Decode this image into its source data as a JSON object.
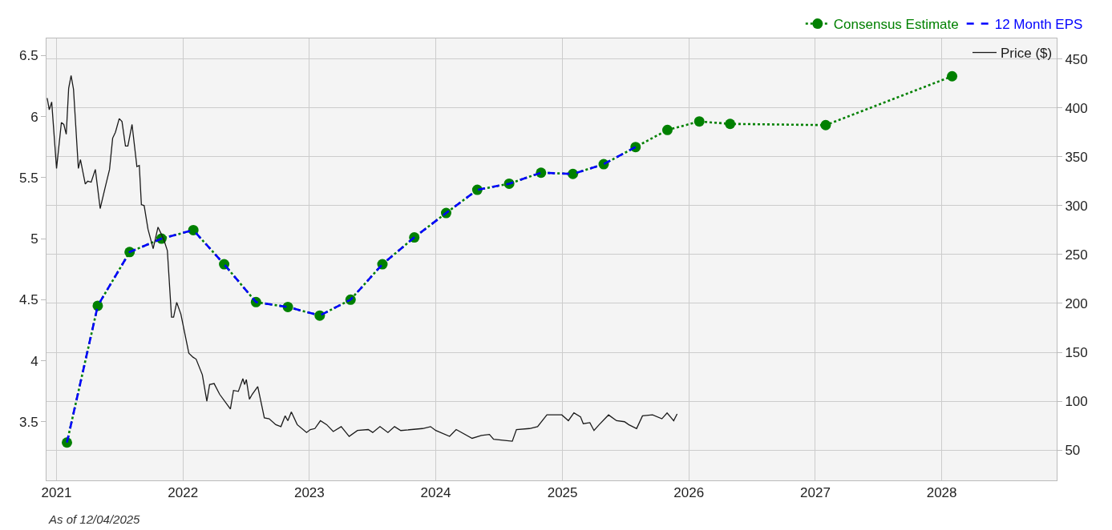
{
  "chart_data": {
    "type": "line",
    "xlim": [
      "2020-12-03",
      "2028-11-28"
    ],
    "xticks": [
      "2021",
      "2022",
      "2023",
      "2024",
      "2025",
      "2026",
      "2027",
      "2028"
    ],
    "ylim": [
      3.02,
      6.64
    ],
    "yticks": [
      3.5,
      4,
      4.5,
      5,
      5.5,
      6,
      6.5
    ],
    "y2lim": [
      19,
      471
    ],
    "y2ticks": [
      50,
      100,
      150,
      200,
      250,
      300,
      350,
      400,
      450
    ],
    "grid": true,
    "legend": "top right",
    "annotations": [
      "As of 12/04/2025"
    ],
    "series": [
      {
        "name": "Price ($)",
        "color": "#1a1a1a",
        "axis": "y2",
        "line_style": "solid",
        "marker": "none",
        "x": [
          "2020-12-05",
          "2020-12-11",
          "2020-12-18",
          "2021-01-01",
          "2021-01-15",
          "2021-01-22",
          "2021-01-29",
          "2021-02-05",
          "2021-02-12",
          "2021-02-19",
          "2021-03-05",
          "2021-03-11",
          "2021-03-25",
          "2021-04-01",
          "2021-04-11",
          "2021-04-23",
          "2021-05-07",
          "2021-05-21",
          "2021-06-03",
          "2021-06-12",
          "2021-06-20",
          "2021-07-01",
          "2021-07-09",
          "2021-07-19",
          "2021-07-26",
          "2021-08-07",
          "2021-08-21",
          "2021-08-28",
          "2021-09-03",
          "2021-09-11",
          "2021-09-22",
          "2021-10-07",
          "2021-10-21",
          "2021-11-06",
          "2021-11-17",
          "2021-11-29",
          "2021-12-05",
          "2021-12-14",
          "2021-12-26",
          "2022-01-18",
          "2022-01-30",
          "2022-02-08",
          "2022-02-26",
          "2022-03-11",
          "2022-03-19",
          "2022-04-01",
          "2022-04-17",
          "2022-05-18",
          "2022-05-27",
          "2022-06-10",
          "2022-06-23",
          "2022-06-28",
          "2022-07-03",
          "2022-07-12",
          "2022-07-20",
          "2022-08-05",
          "2022-08-24",
          "2022-09-07",
          "2022-09-26",
          "2022-10-11",
          "2022-10-23",
          "2022-10-31",
          "2022-11-10",
          "2022-11-27",
          "2022-12-24",
          "2023-01-04",
          "2023-01-17",
          "2023-02-02",
          "2023-02-20",
          "2023-03-11",
          "2023-04-03",
          "2023-04-26",
          "2023-05-20",
          "2023-06-20",
          "2023-07-03",
          "2023-07-24",
          "2023-08-16",
          "2023-09-04",
          "2023-09-22",
          "2023-11-24",
          "2023-12-17",
          "2024-01-01",
          "2024-02-10",
          "2024-02-29",
          "2024-04-15",
          "2024-05-12",
          "2024-06-04",
          "2024-06-16",
          "2024-07-13",
          "2024-08-09",
          "2024-08-21",
          "2024-09-28",
          "2024-10-21",
          "2024-11-17",
          "2024-12-30",
          "2025-01-18",
          "2025-02-03",
          "2025-02-22",
          "2025-03-02",
          "2025-03-21",
          "2025-04-02",
          "2025-04-17",
          "2025-05-14",
          "2025-06-06",
          "2025-06-29",
          "2025-07-11",
          "2025-08-03",
          "2025-08-20",
          "2025-09-18",
          "2025-10-15",
          "2025-10-30",
          "2025-11-11",
          "2025-11-18",
          "2025-11-28"
        ],
        "values": [
          410,
          398,
          406,
          338,
          385,
          383,
          373,
          420,
          433,
          419,
          338,
          347,
          322,
          325,
          324,
          337,
          297,
          318,
          337,
          369,
          375,
          389,
          386,
          361,
          361,
          383,
          340,
          341,
          301,
          300,
          276,
          256,
          278,
          266,
          254,
          186,
          186,
          201,
          189,
          149,
          145,
          143,
          127,
          100,
          117,
          118,
          107,
          92,
          111,
          110,
          123,
          117,
          122,
          102,
          107,
          115,
          83,
          82,
          76,
          74,
          85,
          80,
          89,
          76,
          68,
          71,
          72,
          80,
          76,
          69,
          74,
          64,
          70,
          71,
          68,
          74,
          68,
          74,
          70,
          72,
          74,
          70,
          64,
          71,
          62,
          65,
          66,
          61,
          60,
          59,
          71,
          72,
          74,
          86,
          86,
          80,
          88,
          84,
          77,
          78,
          70,
          76,
          86,
          80,
          79,
          76,
          72,
          85,
          86,
          82,
          88,
          83,
          80,
          87
        ]
      },
      {
        "name": "Consensus Estimate",
        "color": "#008000",
        "axis": "y",
        "line_style": "dotted",
        "marker": "circle",
        "x": [
          "2021-01-31",
          "2021-04-30",
          "2021-07-31",
          "2021-10-31",
          "2022-01-31",
          "2022-04-30",
          "2022-07-31",
          "2022-10-31",
          "2023-01-31",
          "2023-04-30",
          "2023-07-31",
          "2023-10-31",
          "2024-01-31",
          "2024-04-30",
          "2024-07-31",
          "2024-10-31",
          "2025-01-31",
          "2025-04-30",
          "2025-07-31",
          "2025-10-31",
          "2026-01-31",
          "2026-04-30",
          "2027-01-31",
          "2028-01-31"
        ],
        "values": [
          3.33,
          4.45,
          4.89,
          5.0,
          5.07,
          4.79,
          4.48,
          4.44,
          4.37,
          4.5,
          4.79,
          5.01,
          5.21,
          5.4,
          5.45,
          5.54,
          5.53,
          5.61,
          5.75,
          5.89,
          5.96,
          5.94,
          5.93,
          6.33
        ]
      },
      {
        "name": "12 Month EPS",
        "color": "#0000ff",
        "axis": "y",
        "line_style": "dashed",
        "marker": "none",
        "x": [
          "2021-01-31",
          "2021-04-30",
          "2021-07-31",
          "2021-10-31",
          "2022-01-31",
          "2022-04-30",
          "2022-07-31",
          "2022-10-31",
          "2023-01-31",
          "2023-04-30",
          "2023-07-31",
          "2023-10-31",
          "2024-01-31",
          "2024-04-30",
          "2024-07-31",
          "2024-10-31",
          "2025-01-31",
          "2025-04-30",
          "2025-07-31"
        ],
        "values": [
          3.33,
          4.45,
          4.89,
          5.0,
          5.07,
          4.79,
          4.48,
          4.44,
          4.37,
          4.5,
          4.79,
          5.01,
          5.21,
          5.4,
          5.45,
          5.54,
          5.53,
          5.61,
          5.75
        ]
      }
    ]
  }
}
